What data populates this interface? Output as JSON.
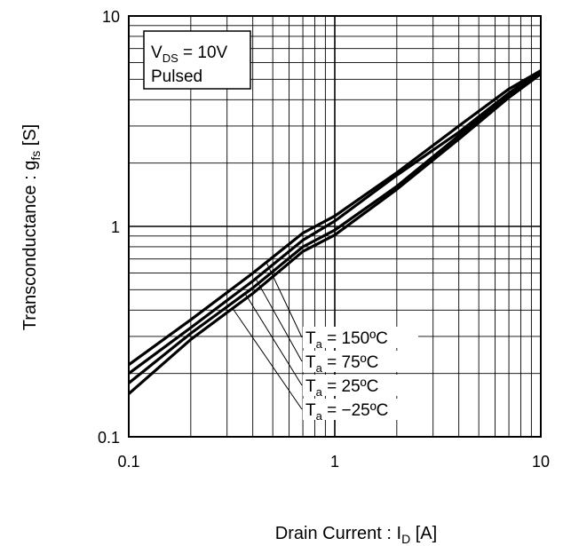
{
  "chart_data": {
    "type": "line",
    "title": "",
    "xlabel": {
      "main": "Drain Current : I",
      "sub": "D",
      "unit": " [A]"
    },
    "ylabel": {
      "main": "Transconductance : g",
      "sub": "fs",
      "unit": " [S]"
    },
    "xscale": "log",
    "yscale": "log",
    "xlim": [
      0.1,
      10
    ],
    "ylim": [
      0.1,
      10
    ],
    "xticks": [
      "0.1",
      "1",
      "10"
    ],
    "yticks": [
      "0.1",
      "1",
      "10"
    ],
    "grid": true,
    "condition": {
      "line1": {
        "sym": "V",
        "sub": "DS",
        "rest": " = 10V"
      },
      "line2": "Pulsed"
    },
    "series": [
      {
        "name": "150ºC",
        "label": {
          "sym": "T",
          "sub": "a",
          "rest": " = 150ºC"
        },
        "x": [
          0.1,
          0.2,
          0.4,
          0.7,
          1,
          2,
          4,
          7,
          10
        ],
        "y": [
          0.22,
          0.36,
          0.6,
          0.93,
          1.12,
          1.8,
          3.0,
          4.5,
          5.5
        ]
      },
      {
        "name": "75ºC",
        "label": {
          "sym": "T",
          "sub": "a",
          "rest": " = 75ºC"
        },
        "x": [
          0.1,
          0.2,
          0.4,
          0.7,
          1,
          2,
          4,
          7,
          10
        ],
        "y": [
          0.2,
          0.33,
          0.55,
          0.86,
          1.06,
          1.75,
          2.8,
          4.3,
          5.5
        ]
      },
      {
        "name": "25ºC",
        "label": {
          "sym": "T",
          "sub": "a",
          "rest": " = 25ºC"
        },
        "x": [
          0.1,
          0.2,
          0.4,
          0.7,
          1,
          2,
          4,
          7,
          10
        ],
        "y": [
          0.18,
          0.31,
          0.51,
          0.8,
          0.96,
          1.55,
          2.7,
          4.2,
          5.4
        ]
      },
      {
        "name": "−25ºC",
        "label": {
          "sym": "T",
          "sub": "a",
          "rest": " = −25ºC"
        },
        "x": [
          0.1,
          0.2,
          0.4,
          0.7,
          1,
          2,
          4,
          7,
          10
        ],
        "y": [
          0.16,
          0.29,
          0.48,
          0.76,
          0.91,
          1.5,
          2.6,
          4.1,
          5.3
        ]
      }
    ]
  }
}
